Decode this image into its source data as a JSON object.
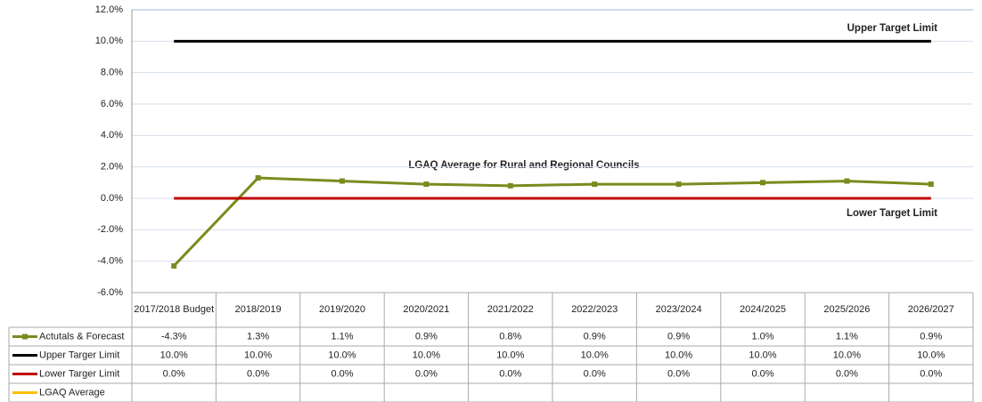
{
  "chart_data": {
    "type": "line",
    "categories": [
      "2017/2018 Budget",
      "2018/2019",
      "2019/2020",
      "2020/2021",
      "2021/2022",
      "2022/2023",
      "2023/2024",
      "2024/2025",
      "2025/2026",
      "2026/2027"
    ],
    "series": [
      {
        "name": "Actutals & Forecast",
        "color": "#7b8b1f",
        "marker": "square",
        "values": [
          -4.3,
          1.3,
          1.1,
          0.9,
          0.8,
          0.9,
          0.9,
          1.0,
          1.1,
          0.9
        ],
        "value_labels": [
          "-4.3%",
          "1.3%",
          "1.1%",
          "0.9%",
          "0.8%",
          "0.9%",
          "0.9%",
          "1.0%",
          "1.1%",
          "0.9%"
        ]
      },
      {
        "name": "Upper Targer Limit",
        "color": "#000000",
        "values": [
          10,
          10,
          10,
          10,
          10,
          10,
          10,
          10,
          10,
          10
        ],
        "value_labels": [
          "10.0%",
          "10.0%",
          "10.0%",
          "10.0%",
          "10.0%",
          "10.0%",
          "10.0%",
          "10.0%",
          "10.0%",
          "10.0%"
        ]
      },
      {
        "name": "Lower Targer Limit",
        "color": "#c00000",
        "values": [
          0,
          0,
          0,
          0,
          0,
          0,
          0,
          0,
          0,
          0
        ],
        "value_labels": [
          "0.0%",
          "0.0%",
          "0.0%",
          "0.0%",
          "0.0%",
          "0.0%",
          "0.0%",
          "0.0%",
          "0.0%",
          "0.0%"
        ]
      },
      {
        "name": "LGAQ Average",
        "color": "#ffc000",
        "values": [
          null,
          null,
          null,
          null,
          null,
          null,
          null,
          null,
          null,
          null
        ]
      }
    ],
    "annotations": [
      "Upper Target Limit",
      "Lower Target Limit",
      "LGAQ Average for Rural and Regional Councils"
    ],
    "ylim": [
      -6,
      12
    ],
    "yticks": [
      {
        "value": -6,
        "label": "-6.0%"
      },
      {
        "value": -4,
        "label": "-4.0%"
      },
      {
        "value": -2,
        "label": "-2.0%"
      },
      {
        "value": 0,
        "label": "0.0%"
      },
      {
        "value": 2,
        "label": "2.0%"
      },
      {
        "value": 4,
        "label": "4.0%"
      },
      {
        "value": 6,
        "label": "6.0%"
      },
      {
        "value": 8,
        "label": "8.0%"
      },
      {
        "value": 10,
        "label": "10.0%"
      },
      {
        "value": 12,
        "label": "12.0%"
      }
    ],
    "grid": true,
    "data_table": true
  }
}
